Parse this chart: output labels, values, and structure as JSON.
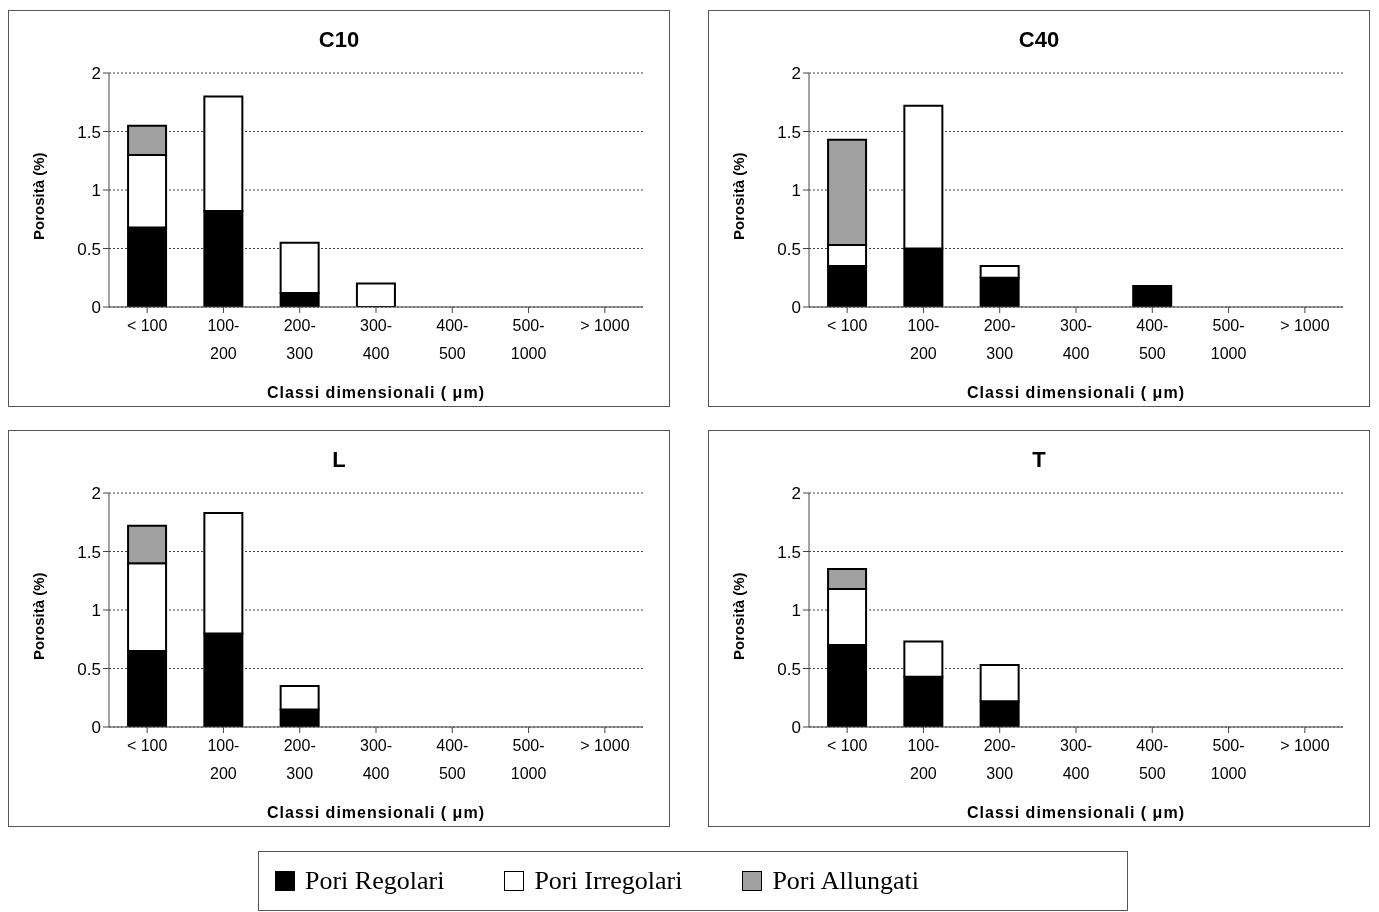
{
  "chart_data": [
    {
      "type": "bar",
      "title": "C10",
      "xlabel": "Classi dimensionali ( μm)",
      "ylabel": "Porosità (%)",
      "categories": [
        "< 100",
        "100-200",
        "200-300",
        "300-400",
        "400-500",
        "500-1000",
        "> 1000"
      ],
      "stacked": true,
      "ylim": [
        0,
        2
      ],
      "yticks": [
        0,
        0.5,
        1,
        1.5,
        2
      ],
      "grid": "y",
      "legend": "bottom",
      "series": [
        {
          "name": "Pori Regolari",
          "color": "#000000",
          "values": [
            0.68,
            0.82,
            0.12,
            0,
            0,
            0,
            0
          ]
        },
        {
          "name": "Pori Irregolari",
          "color": "#ffffff",
          "values": [
            0.62,
            0.98,
            0.43,
            0.2,
            0,
            0,
            0
          ]
        },
        {
          "name": "Pori Allungati",
          "color": "#a0a0a0",
          "values": [
            0.25,
            0,
            0,
            0,
            0,
            0,
            0
          ]
        }
      ]
    },
    {
      "type": "bar",
      "title": "C40",
      "xlabel": "Classi dimensionali ( μm)",
      "ylabel": "Porosità (%)",
      "categories": [
        "< 100",
        "100-200",
        "200-300",
        "300-400",
        "400-500",
        "500-1000",
        "> 1000"
      ],
      "stacked": true,
      "ylim": [
        0,
        2
      ],
      "yticks": [
        0,
        0.5,
        1,
        1.5,
        2
      ],
      "grid": "y",
      "series": [
        {
          "color": "#000000",
          "values": [
            0.35,
            0.5,
            0.25,
            0,
            0.18,
            0,
            0
          ]
        },
        {
          "color": "#ffffff",
          "values": [
            0.18,
            1.22,
            0.1,
            0,
            0,
            0,
            0
          ]
        },
        {
          "color": "#a0a0a0",
          "values": [
            0.9,
            0,
            0,
            0,
            0,
            0,
            0
          ]
        }
      ]
    },
    {
      "type": "bar",
      "title": "L",
      "xlabel": "Classi dimensionali ( μm)",
      "ylabel": "Porosità (%)",
      "categories": [
        "< 100",
        "100-200",
        "200-300",
        "300-400",
        "400-500",
        "500-1000",
        "> 1000"
      ],
      "stacked": true,
      "ylim": [
        0,
        2
      ],
      "yticks": [
        0,
        0.5,
        1,
        1.5,
        2
      ],
      "grid": "y",
      "series": [
        {
          "color": "#000000",
          "values": [
            0.65,
            0.8,
            0.15,
            0,
            0,
            0,
            0
          ]
        },
        {
          "color": "#ffffff",
          "values": [
            0.75,
            1.03,
            0.2,
            0,
            0,
            0,
            0
          ]
        },
        {
          "color": "#a0a0a0",
          "values": [
            0.32,
            0,
            0,
            0,
            0,
            0,
            0
          ]
        }
      ]
    },
    {
      "type": "bar",
      "title": "T",
      "xlabel": "Classi dimensionali ( μm)",
      "ylabel": "Porosità (%)",
      "categories": [
        "< 100",
        "100-200",
        "200-300",
        "300-400",
        "400-500",
        "500-1000",
        "> 1000"
      ],
      "stacked": true,
      "ylim": [
        0,
        2
      ],
      "yticks": [
        0,
        0.5,
        1,
        1.5,
        2
      ],
      "grid": "y",
      "series": [
        {
          "color": "#000000",
          "values": [
            0.7,
            0.43,
            0.22,
            0,
            0,
            0,
            0
          ]
        },
        {
          "color": "#ffffff",
          "values": [
            0.48,
            0.3,
            0.31,
            0,
            0,
            0,
            0
          ]
        },
        {
          "color": "#a0a0a0",
          "values": [
            0.17,
            0,
            0,
            0,
            0,
            0,
            0
          ]
        }
      ]
    }
  ]
}
